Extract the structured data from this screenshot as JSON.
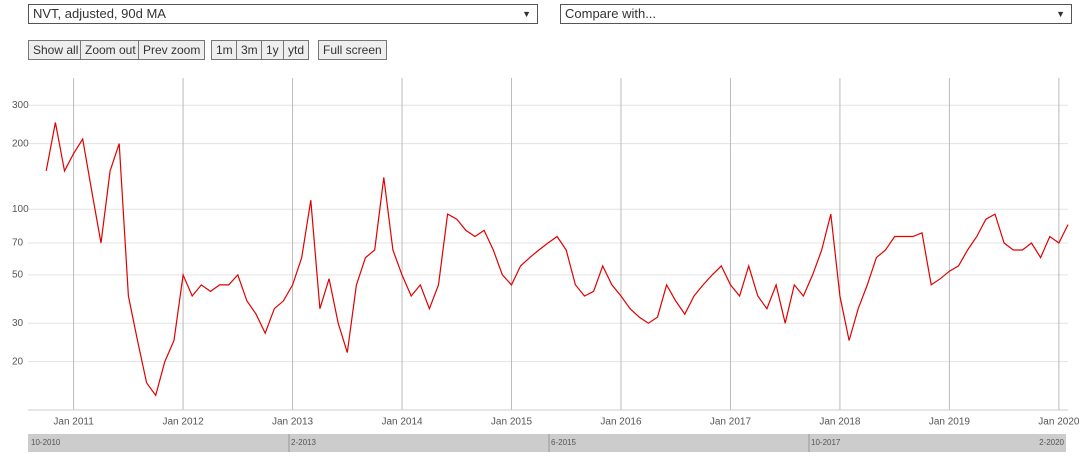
{
  "controls": {
    "metric": "NVT, adjusted, 90d MA",
    "compare": "Compare with...",
    "buttons": [
      "Show all",
      "Zoom out",
      "Prev zoom",
      "1m",
      "3m",
      "1y",
      "ytd",
      "Full screen"
    ]
  },
  "chart_data": {
    "type": "line",
    "color": "#e00000",
    "log_y": true,
    "grid": true,
    "x": [
      "2010-10",
      "2010-11",
      "2010-12",
      "2011-01",
      "2011-02",
      "2011-03",
      "2011-04",
      "2011-05",
      "2011-06",
      "2011-07",
      "2011-08",
      "2011-09",
      "2011-10",
      "2011-11",
      "2011-12",
      "2012-01",
      "2012-02",
      "2012-03",
      "2012-04",
      "2012-05",
      "2012-06",
      "2012-07",
      "2012-08",
      "2012-09",
      "2012-10",
      "2012-11",
      "2012-12",
      "2013-01",
      "2013-02",
      "2013-03",
      "2013-04",
      "2013-05",
      "2013-06",
      "2013-07",
      "2013-08",
      "2013-09",
      "2013-10",
      "2013-11",
      "2013-12",
      "2014-01",
      "2014-02",
      "2014-03",
      "2014-04",
      "2014-05",
      "2014-06",
      "2014-07",
      "2014-08",
      "2014-09",
      "2014-10",
      "2014-11",
      "2014-12",
      "2015-01",
      "2015-02",
      "2015-03",
      "2015-04",
      "2015-05",
      "2015-06",
      "2015-07",
      "2015-08",
      "2015-09",
      "2015-10",
      "2015-11",
      "2015-12",
      "2016-01",
      "2016-02",
      "2016-03",
      "2016-04",
      "2016-05",
      "2016-06",
      "2016-07",
      "2016-08",
      "2016-09",
      "2016-10",
      "2016-11",
      "2016-12",
      "2017-01",
      "2017-02",
      "2017-03",
      "2017-04",
      "2017-05",
      "2017-06",
      "2017-07",
      "2017-08",
      "2017-09",
      "2017-10",
      "2017-11",
      "2017-12",
      "2018-01",
      "2018-02",
      "2018-03",
      "2018-04",
      "2018-05",
      "2018-06",
      "2018-07",
      "2018-08",
      "2018-09",
      "2018-10",
      "2018-11",
      "2018-12",
      "2019-01",
      "2019-02",
      "2019-03",
      "2019-04",
      "2019-05",
      "2019-06",
      "2019-07",
      "2019-08",
      "2019-09",
      "2019-10",
      "2019-11",
      "2019-12",
      "2020-01",
      "2020-02"
    ],
    "values": [
      150,
      250,
      150,
      180,
      210,
      120,
      70,
      150,
      200,
      40,
      25,
      16,
      14,
      20,
      25,
      50,
      40,
      45,
      42,
      45,
      45,
      50,
      38,
      33,
      27,
      35,
      38,
      45,
      60,
      110,
      35,
      48,
      30,
      22,
      45,
      60,
      65,
      140,
      65,
      50,
      40,
      45,
      35,
      45,
      95,
      90,
      80,
      75,
      80,
      65,
      50,
      45,
      55,
      60,
      65,
      70,
      75,
      65,
      45,
      40,
      42,
      55,
      45,
      40,
      35,
      32,
      30,
      32,
      45,
      38,
      33,
      40,
      45,
      50,
      55,
      45,
      40,
      55,
      40,
      35,
      45,
      30,
      45,
      40,
      50,
      65,
      95,
      40,
      25,
      35,
      45,
      60,
      65,
      75,
      75,
      75,
      78,
      45,
      48,
      52,
      55,
      65,
      75,
      90,
      95,
      70,
      65,
      65,
      70,
      60,
      75,
      70,
      85
    ],
    "xlim": [
      "2010-08",
      "2020-02"
    ],
    "xticks": [
      {
        "value": "2011-01",
        "label": "Jan 2011"
      },
      {
        "value": "2012-01",
        "label": "Jan 2012"
      },
      {
        "value": "2013-01",
        "label": "Jan 2013"
      },
      {
        "value": "2014-01",
        "label": "Jan 2014"
      },
      {
        "value": "2015-01",
        "label": "Jan 2015"
      },
      {
        "value": "2016-01",
        "label": "Jan 2016"
      },
      {
        "value": "2017-01",
        "label": "Jan 2017"
      },
      {
        "value": "2018-01",
        "label": "Jan 2018"
      },
      {
        "value": "2019-01",
        "label": "Jan 2019"
      },
      {
        "value": "2020-01",
        "label": "Jan 2020"
      }
    ],
    "ylim": [
      12,
      400
    ],
    "yticks": [
      20,
      30,
      50,
      70,
      100,
      200,
      300
    ]
  },
  "navigator": {
    "labels": [
      "10-2010",
      "2-2013",
      "6-2015",
      "10-2017",
      "2-2020"
    ]
  }
}
